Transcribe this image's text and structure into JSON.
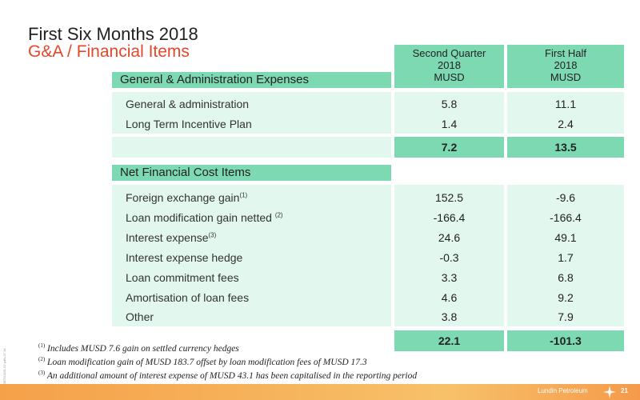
{
  "slide": {
    "title": "First Six Months 2018",
    "subtitle": "G&A / Financial Items",
    "side_code": "3875/1461-02 pdfs 07.18"
  },
  "columns": [
    {
      "line1": "Second Quarter",
      "line2": "2018",
      "line3": "MUSD"
    },
    {
      "line1": "First Half",
      "line2": "2018",
      "line3": "MUSD"
    }
  ],
  "ga_section": {
    "heading": "General & Administration Expenses",
    "rows": [
      {
        "label": "General & administration",
        "sup": "",
        "q2": "5.8",
        "h1": "11.1"
      },
      {
        "label": "Long Term Incentive Plan",
        "sup": "",
        "q2": "1.4",
        "h1": "2.4"
      }
    ],
    "total": {
      "q2": "7.2",
      "h1": "13.5"
    }
  },
  "fin_section": {
    "heading": "Net Financial Cost Items",
    "rows": [
      {
        "label": "Foreign exchange gain",
        "sup": "(1)",
        "q2": "152.5",
        "h1": "-9.6"
      },
      {
        "label": "Loan modification gain netted",
        "sup": "(2)",
        "q2": "-166.4",
        "h1": "-166.4"
      },
      {
        "label": "Interest expense",
        "sup": "(3)",
        "q2": "24.6",
        "h1": "49.1"
      },
      {
        "label": "Interest expense hedge",
        "sup": "",
        "q2": "-0.3",
        "h1": "1.7"
      },
      {
        "label": "Loan commitment fees",
        "sup": "",
        "q2": "3.3",
        "h1": "6.8"
      },
      {
        "label": "Amortisation of loan fees",
        "sup": "",
        "q2": "4.6",
        "h1": "9.2"
      },
      {
        "label": "Other",
        "sup": "",
        "q2": "3.8",
        "h1": "7.9"
      }
    ],
    "total": {
      "q2": "22.1",
      "h1": "-101.3"
    }
  },
  "footnotes": [
    {
      "mark": "(1)",
      "text": "Includes MUSD 7.6 gain on settled currency hedges"
    },
    {
      "mark": "(2)",
      "text": "Loan modification gain of MUSD 183.7 offset by loan modification fees of MUSD 17.3"
    },
    {
      "mark": "(3)",
      "text": "An additional amount of interest expense of MUSD 43.1 has been capitalised in the reporting period"
    }
  ],
  "footer": {
    "brand": "Lundin Petroleum",
    "page": "21"
  },
  "colors": {
    "accent": "#e8462b",
    "header_green": "#7dd9b2",
    "row_green": "#e2f7ee",
    "band_orange": "#f6b25a"
  }
}
